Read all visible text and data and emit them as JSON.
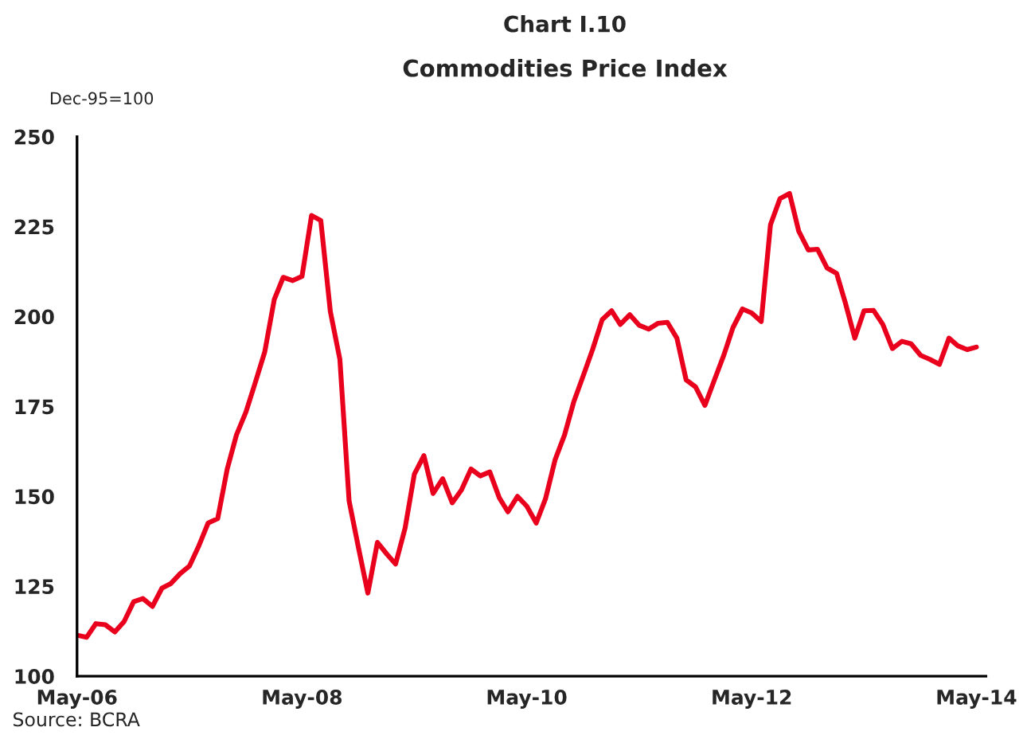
{
  "chart_data": {
    "type": "line",
    "title": "Chart I.10",
    "subtitle": "Commodities Price Index",
    "ylabel": "Dec-95=100",
    "annotations": [
      "Source: BCRA"
    ],
    "x": [
      "2006-05",
      "2006-06",
      "2006-07",
      "2006-08",
      "2006-09",
      "2006-10",
      "2006-11",
      "2006-12",
      "2007-01",
      "2007-02",
      "2007-03",
      "2007-04",
      "2007-05",
      "2007-06",
      "2007-07",
      "2007-08",
      "2007-09",
      "2007-10",
      "2007-11",
      "2007-12",
      "2008-01",
      "2008-02",
      "2008-03",
      "2008-04",
      "2008-05",
      "2008-06",
      "2008-07",
      "2008-08",
      "2008-09",
      "2008-10",
      "2008-11",
      "2008-12",
      "2009-01",
      "2009-02",
      "2009-03",
      "2009-04",
      "2009-05",
      "2009-06",
      "2009-07",
      "2009-08",
      "2009-09",
      "2009-10",
      "2009-11",
      "2009-12",
      "2010-01",
      "2010-02",
      "2010-03",
      "2010-04",
      "2010-05",
      "2010-06",
      "2010-07",
      "2010-08",
      "2010-09",
      "2010-10",
      "2010-11",
      "2010-12",
      "2011-01",
      "2011-02",
      "2011-03",
      "2011-04",
      "2011-05",
      "2011-06",
      "2011-07",
      "2011-08",
      "2011-09",
      "2011-10",
      "2011-11",
      "2011-12",
      "2012-01",
      "2012-02",
      "2012-03",
      "2012-04",
      "2012-05",
      "2012-06",
      "2012-07",
      "2012-08",
      "2012-09",
      "2012-10",
      "2012-11",
      "2012-12",
      "2013-01",
      "2013-02",
      "2013-03",
      "2013-04",
      "2013-05",
      "2013-06",
      "2013-07",
      "2013-08",
      "2013-09",
      "2013-10",
      "2013-11",
      "2013-12",
      "2014-01",
      "2014-02",
      "2014-03",
      "2014-04",
      "2014-05"
    ],
    "series": [
      {
        "color": "#e8001c",
        "values": [
          111.4,
          110.8,
          114.6,
          114.3,
          112.3,
          115.2,
          120.7,
          121.6,
          119.4,
          124.5,
          125.7,
          128.5,
          130.6,
          136.3,
          142.6,
          143.8,
          157.6,
          167.1,
          173.5,
          181.6,
          190.2,
          204.8,
          210.9,
          210.0,
          211.2,
          228.1,
          226.7,
          201.4,
          188.1,
          148.7,
          135.5,
          123.1,
          137.2,
          133.9,
          131.2,
          141.2,
          156.2,
          161.3,
          150.8,
          154.9,
          148.2,
          151.8,
          157.6,
          155.7,
          156.8,
          149.6,
          145.7,
          150.0,
          147.3,
          142.6,
          149.3,
          160.1,
          167.1,
          176.3,
          183.6,
          190.8,
          199.1,
          201.6,
          197.8,
          200.5,
          197.6,
          196.5,
          198.1,
          198.4,
          194.0,
          182.4,
          180.4,
          175.3,
          182.4,
          189.4,
          196.9,
          202.1,
          201.0,
          198.6,
          225.5,
          232.8,
          234.2,
          223.7,
          218.5,
          218.7,
          213.5,
          212.0,
          203.9,
          194.0,
          201.6,
          201.7,
          197.8,
          191.1,
          193.1,
          192.4,
          189.2,
          188.1,
          186.7,
          194.0,
          191.9,
          190.8,
          191.5
        ]
      }
    ],
    "xlim": [
      "2006-05",
      "2014-06"
    ],
    "xticks": [
      {
        "value": "2006-05",
        "label": "May-06"
      },
      {
        "value": "2008-05",
        "label": "May-08"
      },
      {
        "value": "2010-05",
        "label": "May-10"
      },
      {
        "value": "2012-05",
        "label": "May-12"
      },
      {
        "value": "2014-05",
        "label": "May-14"
      }
    ],
    "ylim": [
      100,
      250
    ],
    "yticks": [
      100,
      125,
      150,
      175,
      200,
      225,
      250
    ],
    "grid": false,
    "marker": "none",
    "line_style": "solid"
  }
}
